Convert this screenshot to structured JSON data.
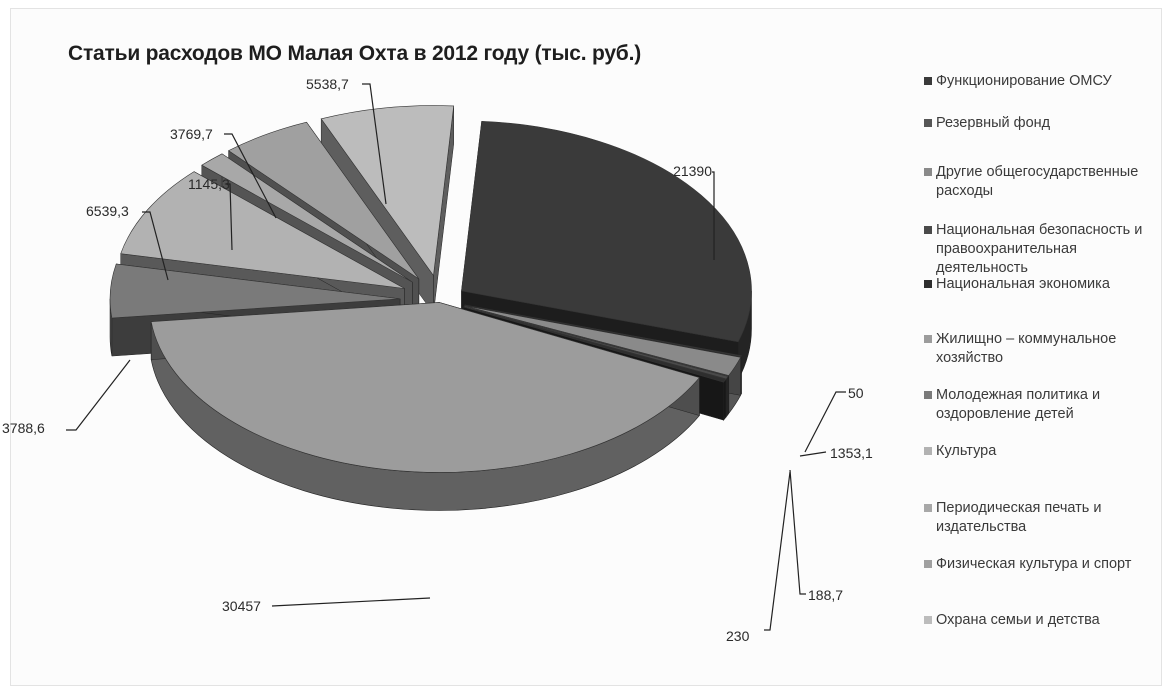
{
  "chart_data": {
    "type": "pie",
    "title": "Статьи расходов МО Малая Охта в 2012 году (тыс. руб.)",
    "legend_position": "right",
    "slices": [
      {
        "label": "Функционирование ОМСУ",
        "value": 21390,
        "value_label": "21390",
        "color": "#3a3a3a"
      },
      {
        "label": "Резервный фонд",
        "value": 50,
        "value_label": "50",
        "color": "#565656"
      },
      {
        "label": "Другие общегосударственные расходы",
        "value": 1353.1,
        "value_label": "1353,1",
        "color": "#8a8a8a"
      },
      {
        "label": "Национальная безопасность и правоохранительная деятельность",
        "value": 188.7,
        "value_label": "188,7",
        "color": "#4a4a4a"
      },
      {
        "label": "Национальная экономика",
        "value": 230,
        "value_label": "230",
        "color": "#2e2e2e"
      },
      {
        "label": "Жилищно – коммунальное хозяйство",
        "value": 30457,
        "value_label": "30457",
        "color": "#9c9c9c"
      },
      {
        "label": "Молодежная политика и оздоровление детей",
        "value": 3788.6,
        "value_label": "3788,6",
        "color": "#7a7a7a"
      },
      {
        "label": "Культура",
        "value": 6539.3,
        "value_label": "6539,3",
        "color": "#b2b2b2"
      },
      {
        "label": "Периодическая печать и издательства",
        "value": 1145.3,
        "value_label": "1145,3",
        "color": "#a8a8a8"
      },
      {
        "label": "Физическая культура и спорт",
        "value": 3769.7,
        "value_label": "3769,7",
        "color": "#a0a0a0"
      },
      {
        "label": "Охрана семьи и детства",
        "value": 5538.7,
        "value_label": "5538,7",
        "color": "#bcbcbc"
      }
    ]
  }
}
